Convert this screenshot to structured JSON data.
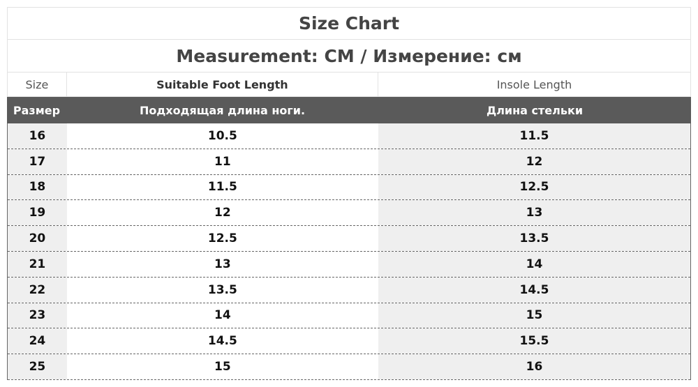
{
  "title": "Size Chart",
  "measurement": "Measurement: CM / Измерение: см",
  "headers_en": [
    "Size",
    "Suitable Foot Length",
    "Insole Length"
  ],
  "headers_ru": [
    "Размер",
    "Подходящая длина ноги.",
    "Длина стельки"
  ],
  "rows": [
    [
      "16",
      "10.5",
      "11.5"
    ],
    [
      "17",
      "11",
      "12"
    ],
    [
      "18",
      "11.5",
      "12.5"
    ],
    [
      "19",
      "12",
      "13"
    ],
    [
      "20",
      "12.5",
      "13.5"
    ],
    [
      "21",
      "13",
      "14"
    ],
    [
      "22",
      "13.5",
      "14.5"
    ],
    [
      "23",
      "14",
      "15"
    ],
    [
      "24",
      "14.5",
      "15.5"
    ],
    [
      "25",
      "15",
      "16"
    ]
  ]
}
